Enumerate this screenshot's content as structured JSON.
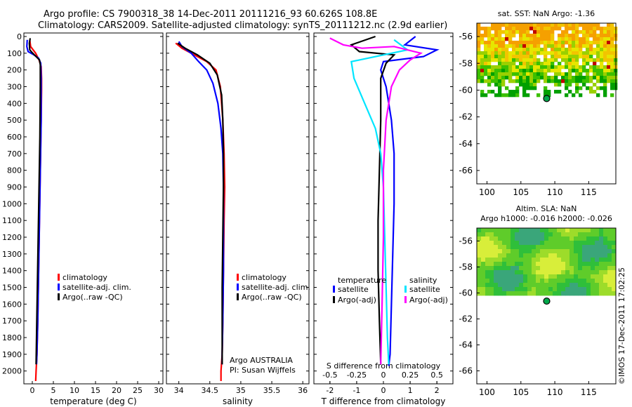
{
  "figure": {
    "title_line1": "Argo profile: CS 7900318_38 14-Dec-2011 20111216_93 60.626S 108.8E",
    "title_line2": "Climatology: CARS2009. Satellite-adjusted climatology: synTS_20111212.nc (2.9d earlier)",
    "credit": "©IMOS 17-Dec-2011 17:02:25",
    "colors": {
      "climatology": "#ff0000",
      "satellite": "#0000ff",
      "argo": "#000000",
      "sal_satellite": "#00e5ff",
      "sal_argo": "#ff00ff"
    }
  },
  "chart_data": [
    {
      "type": "line",
      "name": "temperature",
      "xlabel": "temperature (deg C)",
      "ylabel": "",
      "xlim": [
        -2,
        31
      ],
      "ylim": [
        0,
        2100
      ],
      "y_inverted": true,
      "xticks": [
        "0",
        "5",
        "10",
        "15",
        "20",
        "25",
        "30"
      ],
      "yticks": [
        "0",
        "100",
        "200",
        "300",
        "400",
        "500",
        "600",
        "700",
        "800",
        "900",
        "1000",
        "1100",
        "1200",
        "1300",
        "1400",
        "1500",
        "1600",
        "1700",
        "1800",
        "1900",
        "2000"
      ],
      "legend": [
        "climatology",
        "satellite-adj. clim.",
        "Argo(..raw -QC)"
      ],
      "series": [
        {
          "name": "climatology",
          "color": "#ff0000",
          "points": [
            [
              -0.6,
              20
            ],
            [
              -0.4,
              60
            ],
            [
              0.8,
              100
            ],
            [
              1.6,
              140
            ],
            [
              2.1,
              180
            ],
            [
              2.2,
              250
            ],
            [
              2.2,
              320
            ],
            [
              2.1,
              500
            ],
            [
              1.9,
              800
            ],
            [
              1.7,
              1100
            ],
            [
              1.5,
              1400
            ],
            [
              1.3,
              1700
            ],
            [
              1.1,
              1900
            ],
            [
              0.9,
              2000
            ],
            [
              0.8,
              2060
            ]
          ]
        },
        {
          "name": "satellite-adj. clim.",
          "color": "#0000ff",
          "points": [
            [
              -1.2,
              20
            ],
            [
              -1.3,
              60
            ],
            [
              -1.0,
              90
            ],
            [
              0.4,
              110
            ],
            [
              1.5,
              130
            ],
            [
              2.0,
              160
            ],
            [
              2.1,
              250
            ],
            [
              2.1,
              500
            ],
            [
              1.9,
              800
            ],
            [
              1.7,
              1100
            ],
            [
              1.5,
              1400
            ],
            [
              1.3,
              1700
            ],
            [
              1.1,
              1900
            ],
            [
              1.0,
              1960
            ]
          ]
        },
        {
          "name": "Argo(..raw -QC)",
          "color": "#000000",
          "points": [
            [
              -0.5,
              10
            ],
            [
              -0.7,
              40
            ],
            [
              -0.6,
              80
            ],
            [
              0.1,
              100
            ],
            [
              0.9,
              120
            ],
            [
              1.7,
              140
            ],
            [
              1.9,
              170
            ],
            [
              1.9,
              300
            ],
            [
              1.8,
              600
            ],
            [
              1.6,
              900
            ],
            [
              1.4,
              1200
            ],
            [
              1.2,
              1500
            ],
            [
              1.0,
              1800
            ],
            [
              0.9,
              1960
            ]
          ]
        }
      ]
    },
    {
      "type": "line",
      "name": "salinity",
      "xlabel": "salinity",
      "xlim": [
        33.8,
        36.1
      ],
      "ylim": [
        0,
        2100
      ],
      "y_inverted": true,
      "xticks": [
        "34",
        "34.5",
        "35",
        "35.5",
        "36"
      ],
      "legend": [
        "climatology",
        "satellite-adj. clim.",
        "Argo(..raw -QC)"
      ],
      "annotation": [
        "Argo AUSTRALIA",
        "PI: Susan Wijffels"
      ],
      "series": [
        {
          "name": "climatology",
          "color": "#ff0000",
          "points": [
            [
              33.95,
              40
            ],
            [
              34.05,
              70
            ],
            [
              34.25,
              110
            ],
            [
              34.45,
              150
            ],
            [
              34.6,
              200
            ],
            [
              34.67,
              300
            ],
            [
              34.71,
              500
            ],
            [
              34.73,
              700
            ],
            [
              34.74,
              900
            ],
            [
              34.73,
              1100
            ],
            [
              34.72,
              1400
            ],
            [
              34.71,
              1700
            ],
            [
              34.7,
              1900
            ],
            [
              34.68,
              2000
            ],
            [
              34.68,
              2060
            ]
          ]
        },
        {
          "name": "satellite-adj. clim.",
          "color": "#0000ff",
          "points": [
            [
              34.0,
              30
            ],
            [
              34.05,
              60
            ],
            [
              34.2,
              100
            ],
            [
              34.32,
              150
            ],
            [
              34.45,
              200
            ],
            [
              34.55,
              280
            ],
            [
              34.63,
              400
            ],
            [
              34.68,
              550
            ],
            [
              34.71,
              700
            ],
            [
              34.72,
              900
            ],
            [
              34.72,
              1100
            ],
            [
              34.72,
              1400
            ],
            [
              34.71,
              1700
            ],
            [
              34.7,
              1900
            ],
            [
              34.7,
              1960
            ]
          ]
        },
        {
          "name": "Argo(..raw -QC)",
          "color": "#000000",
          "points": [
            [
              33.98,
              40
            ],
            [
              34.1,
              70
            ],
            [
              34.3,
              110
            ],
            [
              34.5,
              160
            ],
            [
              34.62,
              230
            ],
            [
              34.69,
              350
            ],
            [
              34.71,
              500
            ],
            [
              34.72,
              700
            ],
            [
              34.72,
              900
            ],
            [
              34.71,
              1200
            ],
            [
              34.7,
              1500
            ],
            [
              34.7,
              1800
            ],
            [
              34.7,
              1960
            ]
          ]
        }
      ]
    },
    {
      "type": "line",
      "name": "differences",
      "xlabel": "T difference from climatology",
      "xlabel_top": "S difference from climatology",
      "xlim": [
        -2.6,
        2.6
      ],
      "ylim": [
        0,
        2100
      ],
      "y_inverted": true,
      "xticks": [
        "-2",
        "-1",
        "0",
        "1",
        "2"
      ],
      "xticks_top": [
        "-0.5",
        "-0.25",
        "0",
        "0.25",
        "0.5"
      ],
      "legend_groups": [
        {
          "heading": "temperature",
          "items": [
            "satellite",
            "Argo(-adj)"
          ]
        },
        {
          "heading": "salinity",
          "items": [
            "satellite",
            "Argo(-adj)"
          ]
        }
      ],
      "series": [
        {
          "name": "temperature satellite",
          "color": "#0000ff",
          "points": [
            [
              1.2,
              0
            ],
            [
              0.8,
              50
            ],
            [
              2.0,
              80
            ],
            [
              1.5,
              120
            ],
            [
              0.0,
              150
            ],
            [
              -0.1,
              200
            ],
            [
              0.1,
              300
            ],
            [
              0.3,
              500
            ],
            [
              0.4,
              700
            ],
            [
              0.4,
              1000
            ],
            [
              0.35,
              1300
            ],
            [
              0.3,
              1600
            ],
            [
              0.25,
              1900
            ],
            [
              0.2,
              1970
            ]
          ]
        },
        {
          "name": "temperature Argo(-adj)",
          "color": "#000000",
          "points": [
            [
              -0.3,
              0
            ],
            [
              -1.2,
              50
            ],
            [
              -0.9,
              90
            ],
            [
              0.4,
              110
            ],
            [
              0.1,
              160
            ],
            [
              -0.1,
              250
            ],
            [
              -0.1,
              500
            ],
            [
              -0.15,
              800
            ],
            [
              -0.2,
              1100
            ],
            [
              -0.2,
              1400
            ],
            [
              -0.15,
              1700
            ],
            [
              -0.1,
              1960
            ]
          ]
        },
        {
          "name": "salinity satellite",
          "color": "#00e5ff",
          "points": [
            [
              0.4,
              20
            ],
            [
              0.9,
              80
            ],
            [
              -1.2,
              150
            ],
            [
              -1.1,
              250
            ],
            [
              -0.7,
              400
            ],
            [
              -0.3,
              550
            ],
            [
              -0.1,
              700
            ],
            [
              0.0,
              900
            ],
            [
              0.05,
              1200
            ],
            [
              0.1,
              1500
            ],
            [
              0.15,
              1800
            ],
            [
              0.2,
              1960
            ]
          ]
        },
        {
          "name": "salinity Argo(-adj)",
          "color": "#ff00ff",
          "points": [
            [
              -2.0,
              10
            ],
            [
              -1.5,
              50
            ],
            [
              -0.8,
              70
            ],
            [
              0.4,
              60
            ],
            [
              1.4,
              100
            ],
            [
              1.0,
              140
            ],
            [
              0.6,
              200
            ],
            [
              0.3,
              300
            ],
            [
              0.1,
              500
            ],
            [
              0.0,
              800
            ],
            [
              0.0,
              1200
            ],
            [
              -0.05,
              1600
            ],
            [
              -0.1,
              1960
            ]
          ]
        }
      ]
    },
    {
      "type": "heatmap",
      "name": "sst_map",
      "title": "sat. SST: NaN Argo: -1.36",
      "xlim": [
        98.5,
        119
      ],
      "ylim": [
        -67,
        -55
      ],
      "xticks": [
        "100",
        "105",
        "110",
        "115"
      ],
      "yticks": [
        "-56",
        "-58",
        "-60",
        "-62",
        "-64",
        "-66"
      ],
      "marker": {
        "lon": 108.8,
        "lat": -60.626
      }
    },
    {
      "type": "heatmap",
      "name": "sla_map",
      "title": "Altim. SLA: NaN",
      "subtitle": "Argo h1000: -0.016 h2000: -0.026",
      "xlim": [
        98.5,
        119
      ],
      "ylim": [
        -67,
        -55
      ],
      "xticks": [
        "100",
        "105",
        "110",
        "115"
      ],
      "yticks": [
        "-56",
        "-58",
        "-60",
        "-62",
        "-64",
        "-66"
      ],
      "marker": {
        "lon": 108.8,
        "lat": -60.626
      }
    }
  ]
}
